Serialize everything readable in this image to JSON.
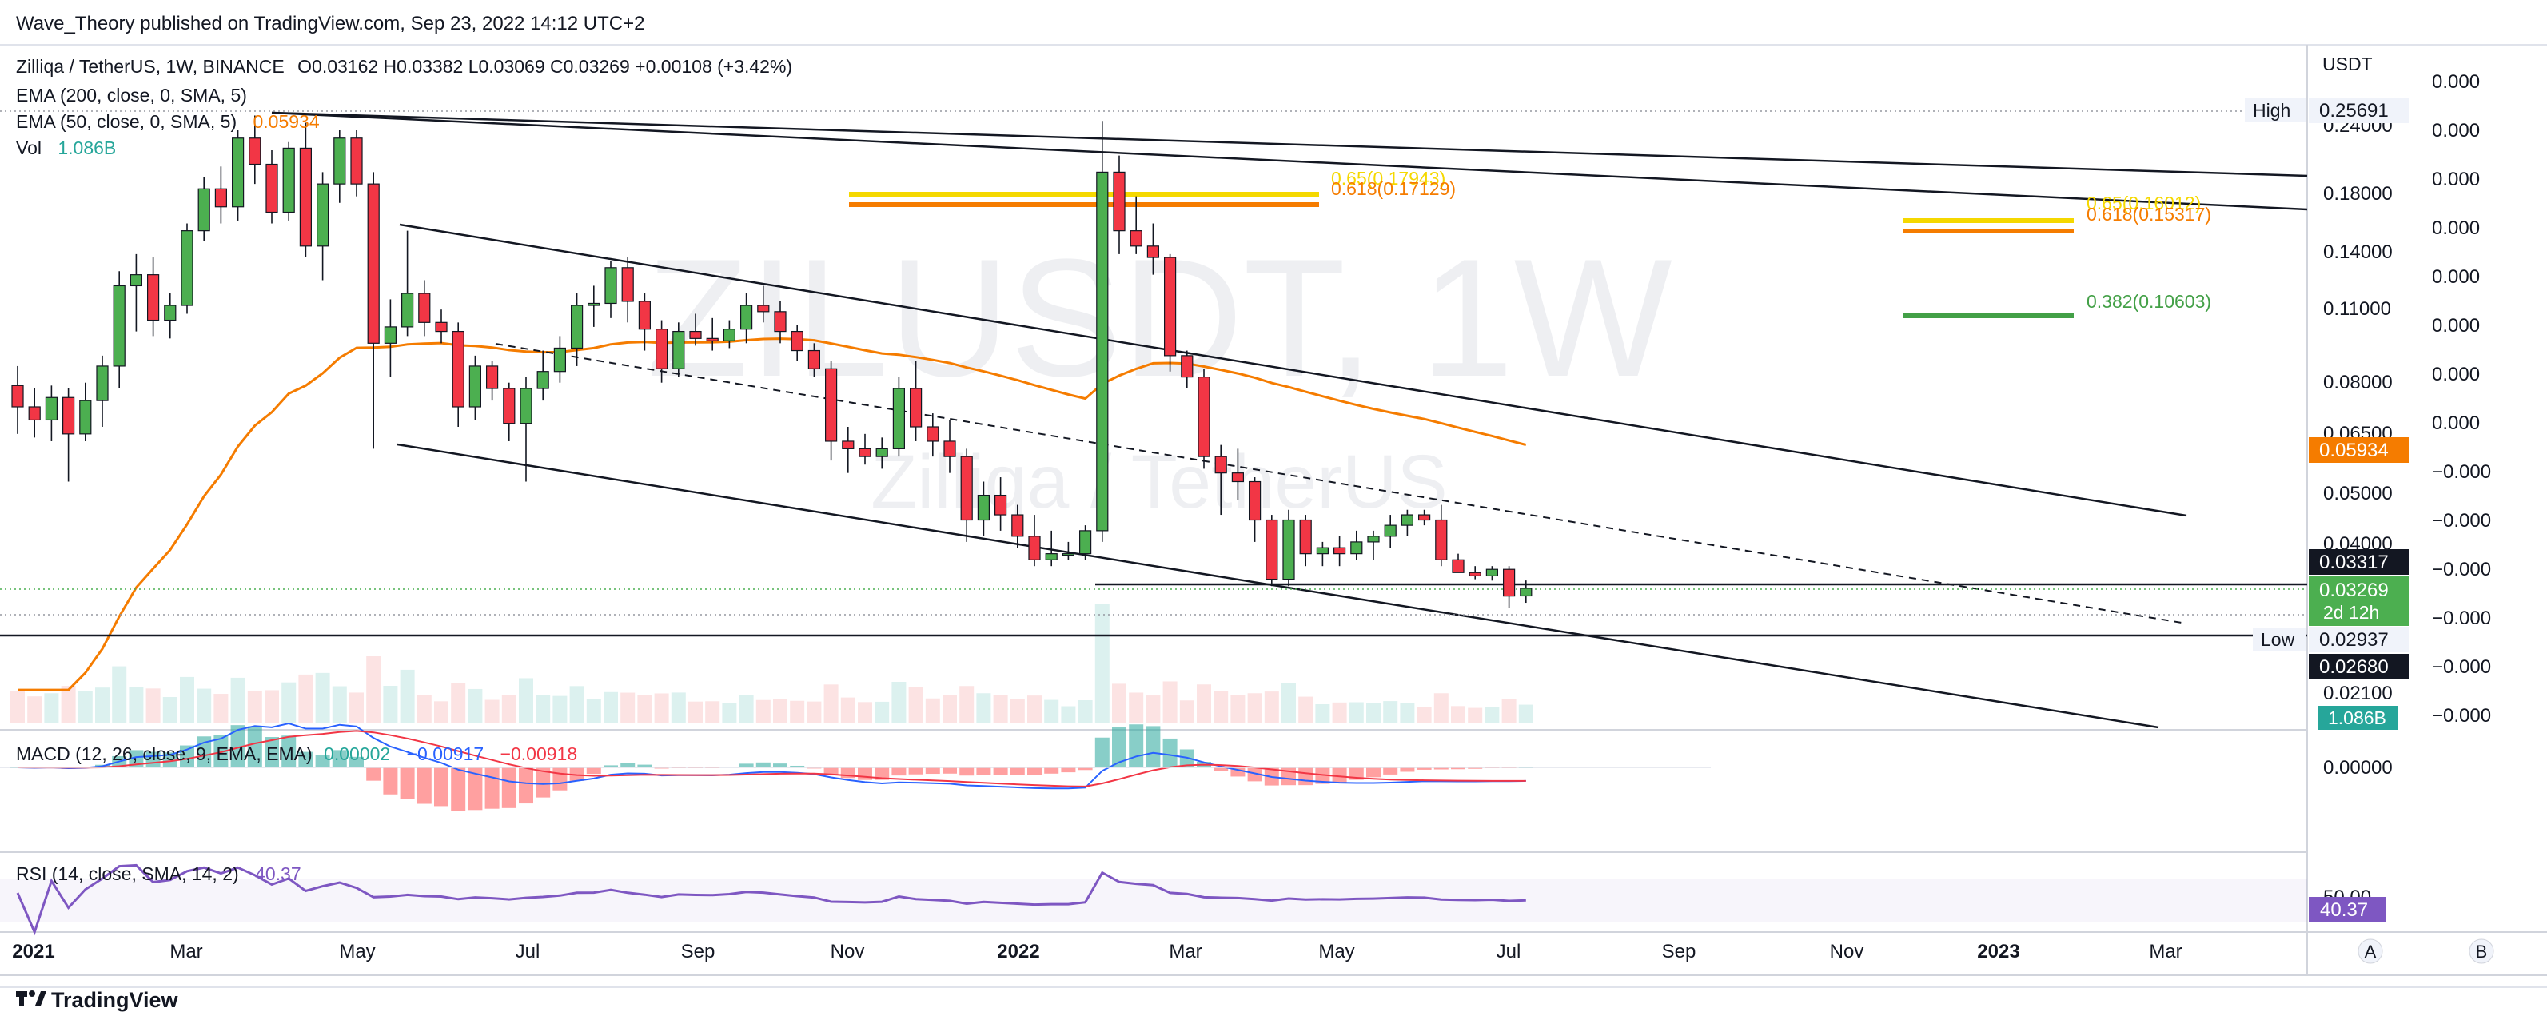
{
  "publisher_line": "Wave_Theory published on TradingView.com, Sep 23, 2022 14:12 UTC+2",
  "watermark": {
    "symbol": "ZILUSDT, 1W",
    "name": "Zilliqa / TetherUS"
  },
  "legend": {
    "symbol": "Zilliqa / TetherUS, 1W, BINANCE",
    "ohlc": "O0.03162  H0.03382  L0.03069  C0.03269  +0.00108 (+3.42%)",
    "ema200": "EMA (200, close, 0, SMA, 5)",
    "ema50": "EMA (50, close, 0, SMA, 5)",
    "ema50_value": "0.05934",
    "vol": "Vol",
    "vol_value": "1.086B",
    "macd": "MACD (12, 26, close, 9, EMA, EMA)",
    "macd_v1": "0.00002",
    "macd_v2": "−0.00917",
    "macd_v3": "−0.00918",
    "rsi": "RSI (14, close, SMA, 14, 2)",
    "rsi_value": "40.37"
  },
  "axis": {
    "currency": "USDT",
    "price_ticks": [
      "0.24000",
      "0.18000",
      "0.14000",
      "0.11000",
      "0.08000",
      "0.06500",
      "0.05000",
      "0.04000",
      "0.02100"
    ],
    "second_ticks": [
      "0.000",
      "0.000",
      "0.000",
      "0.000",
      "0.000",
      "0.000",
      "0.000",
      "0.000",
      "−0.000",
      "−0.000",
      "−0.000",
      "−0.000",
      "−0.000",
      "−0.000"
    ],
    "macd_tick": "0.00000",
    "rsi_tick": "50.00",
    "time_ticks": [
      {
        "label": "2021",
        "bold": true
      },
      {
        "label": "Mar",
        "bold": false
      },
      {
        "label": "May",
        "bold": false
      },
      {
        "label": "Jul",
        "bold": false
      },
      {
        "label": "Sep",
        "bold": false
      },
      {
        "label": "Nov",
        "bold": false
      },
      {
        "label": "2022",
        "bold": true
      },
      {
        "label": "Mar",
        "bold": false
      },
      {
        "label": "May",
        "bold": false
      },
      {
        "label": "Jul",
        "bold": false
      },
      {
        "label": "Sep",
        "bold": false
      },
      {
        "label": "Nov",
        "bold": false
      },
      {
        "label": "2023",
        "bold": true
      },
      {
        "label": "Mar",
        "bold": false
      }
    ],
    "scale_buttons": [
      "A",
      "B"
    ]
  },
  "price_labels": {
    "high_tag": "High",
    "high_value": "0.25691",
    "ema_value": "0.05934",
    "level_value": "0.03317",
    "close_value": "0.03269",
    "countdown": "2d 12h",
    "low_tag": "Low",
    "low_value": "0.02937",
    "support_value": "0.02680",
    "volume_value": "1.086B",
    "rsi_value": "40.37"
  },
  "fib": {
    "left_65": "0.65(0.17943)",
    "left_618": "0.618(0.17129)",
    "right_65": "0.65(0.16012)",
    "right_618": "0.618(0.15317)",
    "right_382": "0.382(0.10603)"
  },
  "colors": {
    "up": "#4caf50",
    "down": "#f23645",
    "ema50": "#f57c00",
    "macd": "#2962ff",
    "signal": "#f23645",
    "rsi": "#7e57c2",
    "fib_yellow": "#f5d800",
    "fib_orange": "#f57c00",
    "fib_green": "#43a047"
  },
  "footer": {
    "brand": "TradingView"
  },
  "chart_data": {
    "type": "candlestick",
    "timeframe": "1W",
    "exchange": "BINANCE",
    "pair": "Zilliqa / TetherUS",
    "x_start": "2021-01-04",
    "candles": [
      [
        0.079,
        0.086,
        0.064,
        0.072
      ],
      [
        0.072,
        0.078,
        0.063,
        0.068
      ],
      [
        0.068,
        0.079,
        0.062,
        0.075
      ],
      [
        0.075,
        0.078,
        0.052,
        0.064
      ],
      [
        0.064,
        0.08,
        0.062,
        0.074
      ],
      [
        0.074,
        0.09,
        0.066,
        0.086
      ],
      [
        0.086,
        0.13,
        0.078,
        0.122
      ],
      [
        0.122,
        0.14,
        0.1,
        0.128
      ],
      [
        0.128,
        0.138,
        0.098,
        0.105
      ],
      [
        0.105,
        0.118,
        0.097,
        0.112
      ],
      [
        0.112,
        0.16,
        0.108,
        0.155
      ],
      [
        0.155,
        0.196,
        0.148,
        0.186
      ],
      [
        0.186,
        0.205,
        0.16,
        0.172
      ],
      [
        0.172,
        0.24,
        0.162,
        0.232
      ],
      [
        0.232,
        0.256,
        0.19,
        0.207
      ],
      [
        0.207,
        0.22,
        0.16,
        0.168
      ],
      [
        0.168,
        0.228,
        0.162,
        0.222
      ],
      [
        0.222,
        0.248,
        0.138,
        0.145
      ],
      [
        0.145,
        0.2,
        0.125,
        0.19
      ],
      [
        0.19,
        0.24,
        0.175,
        0.232
      ],
      [
        0.232,
        0.24,
        0.18,
        0.19
      ],
      [
        0.19,
        0.2,
        0.06,
        0.095
      ],
      [
        0.095,
        0.115,
        0.082,
        0.102
      ],
      [
        0.102,
        0.155,
        0.098,
        0.118
      ],
      [
        0.118,
        0.125,
        0.098,
        0.104
      ],
      [
        0.104,
        0.11,
        0.095,
        0.1
      ],
      [
        0.1,
        0.104,
        0.066,
        0.072
      ],
      [
        0.072,
        0.09,
        0.068,
        0.086
      ],
      [
        0.086,
        0.088,
        0.074,
        0.078
      ],
      [
        0.078,
        0.08,
        0.062,
        0.067
      ],
      [
        0.067,
        0.082,
        0.052,
        0.078
      ],
      [
        0.078,
        0.092,
        0.074,
        0.084
      ],
      [
        0.084,
        0.098,
        0.08,
        0.093
      ],
      [
        0.093,
        0.118,
        0.086,
        0.112
      ],
      [
        0.112,
        0.122,
        0.102,
        0.113
      ],
      [
        0.113,
        0.136,
        0.106,
        0.132
      ],
      [
        0.132,
        0.138,
        0.104,
        0.114
      ],
      [
        0.114,
        0.118,
        0.092,
        0.101
      ],
      [
        0.101,
        0.105,
        0.08,
        0.085
      ],
      [
        0.085,
        0.104,
        0.082,
        0.1
      ],
      [
        0.1,
        0.108,
        0.094,
        0.097
      ],
      [
        0.097,
        0.106,
        0.092,
        0.096
      ],
      [
        0.096,
        0.105,
        0.093,
        0.101
      ],
      [
        0.101,
        0.118,
        0.095,
        0.112
      ],
      [
        0.112,
        0.122,
        0.104,
        0.109
      ],
      [
        0.109,
        0.114,
        0.095,
        0.1
      ],
      [
        0.1,
        0.103,
        0.088,
        0.092
      ],
      [
        0.092,
        0.095,
        0.082,
        0.085
      ],
      [
        0.085,
        0.088,
        0.057,
        0.062
      ],
      [
        0.062,
        0.066,
        0.054,
        0.06
      ],
      [
        0.06,
        0.064,
        0.056,
        0.058
      ],
      [
        0.058,
        0.063,
        0.055,
        0.06
      ],
      [
        0.06,
        0.082,
        0.058,
        0.078
      ],
      [
        0.078,
        0.088,
        0.062,
        0.066
      ],
      [
        0.066,
        0.07,
        0.058,
        0.062
      ],
      [
        0.062,
        0.068,
        0.054,
        0.058
      ],
      [
        0.058,
        0.06,
        0.04,
        0.044
      ],
      [
        0.044,
        0.052,
        0.041,
        0.049
      ],
      [
        0.049,
        0.053,
        0.042,
        0.045
      ],
      [
        0.045,
        0.047,
        0.039,
        0.041
      ],
      [
        0.041,
        0.045,
        0.036,
        0.037
      ],
      [
        0.037,
        0.042,
        0.036,
        0.038
      ],
      [
        0.038,
        0.04,
        0.037,
        0.038
      ],
      [
        0.038,
        0.043,
        0.037,
        0.042
      ],
      [
        0.042,
        0.25,
        0.04,
        0.2
      ],
      [
        0.2,
        0.215,
        0.14,
        0.155
      ],
      [
        0.155,
        0.18,
        0.14,
        0.145
      ],
      [
        0.145,
        0.16,
        0.128,
        0.138
      ],
      [
        0.138,
        0.14,
        0.084,
        0.09
      ],
      [
        0.09,
        0.092,
        0.078,
        0.082
      ],
      [
        0.082,
        0.085,
        0.055,
        0.058
      ],
      [
        0.058,
        0.061,
        0.045,
        0.054
      ],
      [
        0.054,
        0.06,
        0.048,
        0.052
      ],
      [
        0.052,
        0.053,
        0.04,
        0.044
      ],
      [
        0.044,
        0.045,
        0.033,
        0.034
      ],
      [
        0.034,
        0.046,
        0.033,
        0.044
      ],
      [
        0.044,
        0.045,
        0.036,
        0.038
      ],
      [
        0.038,
        0.04,
        0.036,
        0.039
      ],
      [
        0.039,
        0.041,
        0.036,
        0.038
      ],
      [
        0.038,
        0.042,
        0.037,
        0.04
      ],
      [
        0.04,
        0.042,
        0.037,
        0.041
      ],
      [
        0.041,
        0.045,
        0.039,
        0.043
      ],
      [
        0.043,
        0.046,
        0.041,
        0.045
      ],
      [
        0.045,
        0.046,
        0.043,
        0.044
      ],
      [
        0.044,
        0.047,
        0.036,
        0.037
      ],
      [
        0.037,
        0.038,
        0.035,
        0.035
      ],
      [
        0.035,
        0.036,
        0.034,
        0.0345
      ],
      [
        0.0345,
        0.036,
        0.0338,
        0.0355
      ],
      [
        0.0355,
        0.036,
        0.03,
        0.0316
      ],
      [
        0.03162,
        0.03382,
        0.03069,
        0.03269
      ]
    ],
    "volume_last": "1.086B",
    "ema50_range": {
      "from": 0.012,
      "to": 0.05934
    },
    "macd_last": {
      "macd": -0.00917,
      "signal": -0.00918,
      "histogram": 2e-05
    },
    "rsi_last": 40.37,
    "high": 0.25691,
    "low": 0.02937
  }
}
